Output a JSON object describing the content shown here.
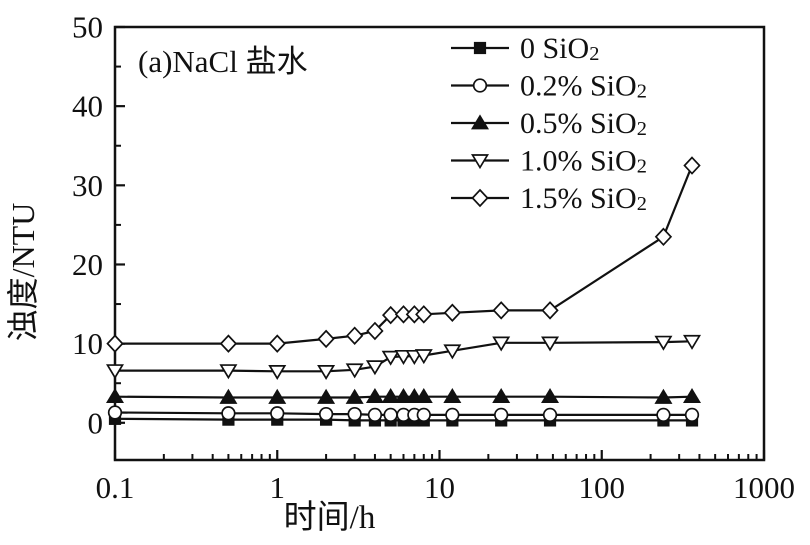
{
  "figure": {
    "annotation": "(a)NaCl 盐水",
    "background": "#ffffff",
    "ink_color": "#111111"
  },
  "chart_data": {
    "type": "line",
    "title": "(a)NaCl 盐水",
    "xlabel": "时间/h",
    "ylabel": "浊度/NTU",
    "x_scale": "log",
    "xlim": [
      0.1,
      1000
    ],
    "ylim": [
      -4.7,
      50
    ],
    "x_tick_labels": [
      "0.1",
      "1",
      "10",
      "100",
      "1000"
    ],
    "y_tick_labels": [
      "0",
      "10",
      "20",
      "30",
      "40",
      "50"
    ],
    "y_major_ticks": [
      0,
      10,
      20,
      30,
      40,
      50
    ],
    "y_minor_ticks": [
      5,
      15,
      25,
      35,
      45
    ],
    "grid": false,
    "legend_position": "upper-center-inside",
    "x": [
      0.1,
      0.5,
      1,
      2,
      3,
      4,
      5,
      6,
      7,
      8,
      12,
      24,
      48,
      240,
      360
    ],
    "series": [
      {
        "name": "0 SiO₂",
        "marker": "square",
        "marker_fill": "filled",
        "values": [
          0.5,
          0.4,
          0.4,
          0.4,
          0.3,
          0.3,
          0.3,
          0.3,
          0.3,
          0.3,
          0.3,
          0.3,
          0.3,
          0.3,
          0.3
        ]
      },
      {
        "name": "0.2% SiO₂",
        "marker": "circle",
        "marker_fill": "open",
        "values": [
          1.3,
          1.2,
          1.2,
          1.1,
          1.1,
          1.0,
          1.0,
          1.0,
          1.0,
          1.0,
          1.0,
          1.0,
          1.0,
          1.0,
          1.0
        ]
      },
      {
        "name": "0.5% SiO₂",
        "marker": "triangle-up",
        "marker_fill": "filled",
        "values": [
          3.3,
          3.2,
          3.2,
          3.2,
          3.2,
          3.3,
          3.3,
          3.3,
          3.3,
          3.3,
          3.3,
          3.3,
          3.3,
          3.2,
          3.3
        ]
      },
      {
        "name": "1.0% SiO₂",
        "marker": "triangle-down",
        "marker_fill": "open",
        "values": [
          6.6,
          6.6,
          6.5,
          6.5,
          6.7,
          7.1,
          8.3,
          8.4,
          8.4,
          8.5,
          9.1,
          10.1,
          10.1,
          10.2,
          10.3
        ]
      },
      {
        "name": "1.5% SiO₂",
        "marker": "diamond",
        "marker_fill": "open",
        "values": [
          10.0,
          10.0,
          10.0,
          10.6,
          11.0,
          11.6,
          13.6,
          13.7,
          13.7,
          13.7,
          13.9,
          14.2,
          14.2,
          23.5,
          32.5
        ]
      }
    ]
  }
}
